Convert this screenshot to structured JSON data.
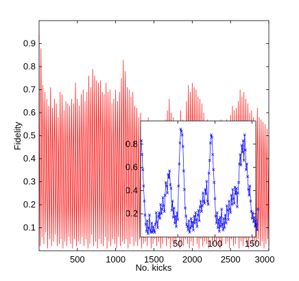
{
  "chart_data": [
    {
      "type": "line",
      "xlabel": "No. kicks",
      "ylabel": "Fidelity",
      "xlim": [
        0,
        3000
      ],
      "ylim": [
        0,
        1.0
      ],
      "xticks": [
        500,
        1000,
        1500,
        2000,
        2500,
        3000
      ],
      "xtick_labels": [
        "500",
        "1000",
        "1500",
        "2000",
        "2500",
        "3000"
      ],
      "yticks": [
        0.1,
        0.2,
        0.3,
        0.4,
        0.5,
        0.6,
        0.7,
        0.8,
        0.9
      ],
      "ytick_labels": [
        "0.1",
        "0.2",
        "0.3",
        "0.4",
        "0.5",
        "0.6",
        "0.7",
        "0.8",
        "0.9"
      ],
      "grid": false,
      "color": "#ff0000",
      "series": [
        {
          "x_step": 25,
          "upper": [
            0.94,
            0.88,
            0.72,
            0.69,
            0.66,
            0.63,
            0.71,
            0.62,
            0.66,
            0.64,
            0.58,
            0.69,
            0.68,
            0.61,
            0.65,
            0.64,
            0.63,
            0.66,
            0.64,
            0.73,
            0.66,
            0.63,
            0.68,
            0.7,
            0.65,
            0.69,
            0.76,
            0.71,
            0.79,
            0.76,
            0.74,
            0.73,
            0.74,
            0.69,
            0.68,
            0.73,
            0.69,
            0.7,
            0.64,
            0.66,
            0.7,
            0.65,
            0.69,
            0.75,
            0.83,
            0.78,
            0.71,
            0.7,
            0.67,
            0.69,
            0.63,
            0.62,
            0.58,
            0.6,
            0.56,
            0.54,
            0.55,
            0.58,
            0.56,
            0.51,
            0.5,
            0.53,
            0.49,
            0.56,
            0.53,
            0.55,
            0.57,
            0.61,
            0.66,
            0.6,
            0.58,
            0.54,
            0.53,
            0.56,
            0.61,
            0.57,
            0.56,
            0.65,
            0.72,
            0.69,
            0.73,
            0.71,
            0.7,
            0.67,
            0.66,
            0.64,
            0.6,
            0.55,
            0.57,
            0.54,
            0.53,
            0.5,
            0.52,
            0.55,
            0.54,
            0.57,
            0.56,
            0.52,
            0.57,
            0.56,
            0.59,
            0.63,
            0.61,
            0.62,
            0.65,
            0.7,
            0.67,
            0.69,
            0.66,
            0.64,
            0.6,
            0.61,
            0.58,
            0.56,
            0.62,
            0.58,
            0.57,
            0.56,
            0.55,
            0.53,
            0.5
          ],
          "lower": [
            0.02,
            0.06,
            0.03,
            0.08,
            0.01,
            0.05,
            0.02,
            0.04,
            0.07,
            0.02,
            0.03,
            0.05,
            0.01,
            0.04,
            0.02,
            0.06,
            0.03,
            0.01,
            0.05,
            0.02,
            0.04,
            0.03,
            0.06,
            0.02,
            0.05,
            0.01,
            0.03,
            0.07,
            0.02,
            0.04,
            0.01,
            0.05,
            0.03,
            0.02,
            0.06,
            0.01,
            0.04,
            0.02,
            0.05,
            0.03,
            0.01,
            0.06,
            0.02,
            0.04,
            0.03,
            0.05,
            0.01,
            0.03,
            0.06,
            0.02,
            0.04,
            0.02,
            0.05,
            0.01,
            0.03,
            0.04,
            0.02,
            0.06,
            0.01,
            0.03,
            0.05,
            0.02,
            0.04,
            0.01,
            0.03,
            0.06,
            0.02,
            0.05,
            0.01,
            0.04,
            0.02,
            0.03,
            0.06,
            0.01,
            0.04,
            0.02,
            0.05,
            0.03,
            0.01,
            0.04,
            0.02,
            0.06,
            0.03,
            0.01,
            0.05,
            0.02,
            0.04,
            0.03,
            0.01,
            0.06,
            0.02,
            0.04,
            0.03,
            0.05,
            0.01,
            0.02,
            0.06,
            0.03,
            0.04,
            0.01,
            0.05,
            0.02,
            0.03,
            0.06,
            0.01,
            0.04,
            0.02,
            0.05,
            0.03,
            0.01,
            0.06,
            0.02,
            0.04,
            0.03,
            0.05,
            0.02,
            0.04,
            0.01,
            0.03,
            0.05,
            0.02
          ]
        }
      ]
    },
    {
      "type": "line",
      "inset": true,
      "xlim": [
        0,
        155
      ],
      "ylim": [
        0,
        1.0
      ],
      "xticks": [
        50,
        100,
        150
      ],
      "xtick_labels": [
        "50",
        "100",
        "150"
      ],
      "yticks": [
        0.2,
        0.4,
        0.6,
        0.8
      ],
      "ytick_labels": [
        "0.2",
        "0.4",
        "0.6",
        "0.8"
      ],
      "color": "#0000ff",
      "marker": "x",
      "series": [
        {
          "x_start": 1,
          "values": [
            0.83,
            0.71,
            0.58,
            0.44,
            0.31,
            0.19,
            0.11,
            0.05,
            0.14,
            0.03,
            0.08,
            0.19,
            0.06,
            0.04,
            0.12,
            0.04,
            0.09,
            0.06,
            0.04,
            0.11,
            0.21,
            0.13,
            0.08,
            0.18,
            0.21,
            0.16,
            0.28,
            0.2,
            0.24,
            0.34,
            0.27,
            0.22,
            0.36,
            0.47,
            0.44,
            0.38,
            0.54,
            0.51,
            0.57,
            0.45,
            0.42,
            0.23,
            0.31,
            0.17,
            0.25,
            0.12,
            0.18,
            0.09,
            0.21,
            0.15,
            0.44,
            0.63,
            0.81,
            0.93,
            0.91,
            0.88,
            0.78,
            0.57,
            0.41,
            0.25,
            0.18,
            0.11,
            0.09,
            0.06,
            0.14,
            0.04,
            0.08,
            0.16,
            0.09,
            0.13,
            0.06,
            0.18,
            0.12,
            0.21,
            0.15,
            0.09,
            0.19,
            0.23,
            0.14,
            0.26,
            0.31,
            0.22,
            0.27,
            0.38,
            0.31,
            0.29,
            0.41,
            0.37,
            0.48,
            0.31,
            0.28,
            0.55,
            0.66,
            0.81,
            0.88,
            0.86,
            0.71,
            0.58,
            0.47,
            0.33,
            0.18,
            0.12,
            0.21,
            0.08,
            0.15,
            0.05,
            0.17,
            0.09,
            0.24,
            0.11,
            0.06,
            0.16,
            0.08,
            0.19,
            0.12,
            0.27,
            0.23,
            0.15,
            0.31,
            0.24,
            0.21,
            0.36,
            0.28,
            0.41,
            0.33,
            0.29,
            0.43,
            0.37,
            0.42,
            0.26,
            0.38,
            0.47,
            0.63,
            0.71,
            0.62,
            0.79,
            0.73,
            0.83,
            0.66,
            0.88,
            0.75,
            0.58,
            0.63,
            0.52,
            0.41,
            0.36,
            0.44,
            0.31,
            0.22,
            0.16,
            0.21,
            0.13,
            0.17,
            0.09,
            0.14,
            0.11,
            0.06,
            0.24
          ]
        }
      ]
    }
  ]
}
